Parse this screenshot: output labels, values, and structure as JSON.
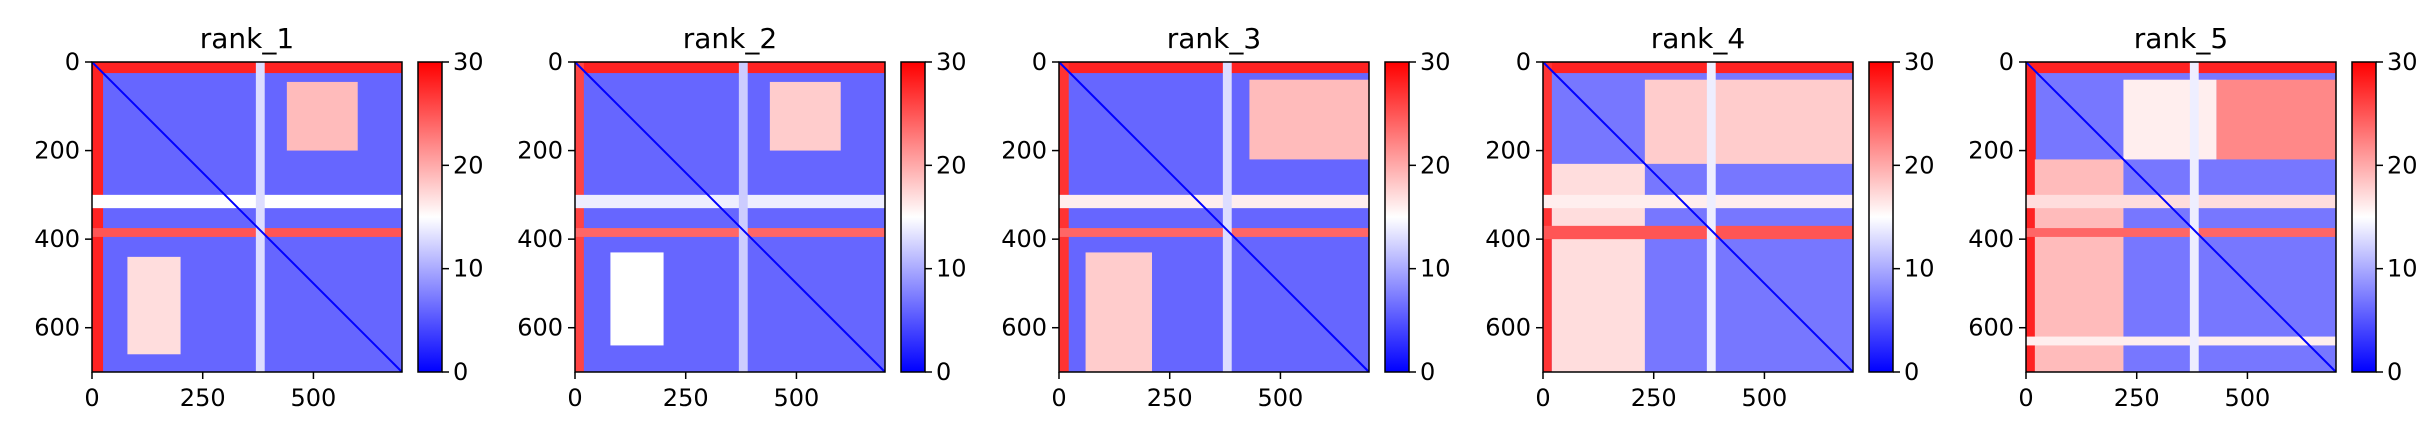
{
  "figure": {
    "panel_count": 5
  },
  "chart_data": [
    {
      "type": "heatmap",
      "title": "rank_1",
      "matrix_size": 700,
      "xticks": [
        0,
        250,
        500
      ],
      "yticks": [
        0,
        200,
        400,
        600
      ],
      "xlim": [
        0,
        700
      ],
      "ylim": [
        700,
        0
      ],
      "colorbar": {
        "min": 0,
        "max": 30,
        "ticks": [
          0,
          10,
          20,
          30
        ],
        "colormap": "bwr",
        "low_color": "#0000ff",
        "mid_color": "#ffffff",
        "high_color": "#ff0000"
      },
      "regions": [
        {
          "rows": [
            0,
            700
          ],
          "cols": [
            0,
            700
          ],
          "value": 6
        },
        {
          "rows": [
            0,
            25
          ],
          "cols": [
            0,
            700
          ],
          "value": 28
        },
        {
          "rows": [
            0,
            700
          ],
          "cols": [
            0,
            25
          ],
          "value": 28
        },
        {
          "rows": [
            45,
            200
          ],
          "cols": [
            440,
            600
          ],
          "value": 19
        },
        {
          "rows": [
            440,
            660
          ],
          "cols": [
            80,
            200
          ],
          "value": 17
        },
        {
          "rows": [
            300,
            330
          ],
          "cols": [
            0,
            700
          ],
          "value": 15
        },
        {
          "rows": [
            375,
            395
          ],
          "cols": [
            0,
            700
          ],
          "value": 25
        },
        {
          "rows": [
            0,
            700
          ],
          "cols": [
            370,
            390
          ],
          "value": 13
        }
      ]
    },
    {
      "type": "heatmap",
      "title": "rank_2",
      "matrix_size": 700,
      "xticks": [
        0,
        250,
        500
      ],
      "yticks": [
        0,
        200,
        400,
        600
      ],
      "xlim": [
        0,
        700
      ],
      "ylim": [
        700,
        0
      ],
      "colorbar": {
        "min": 0,
        "max": 30,
        "ticks": [
          0,
          10,
          20,
          30
        ],
        "colormap": "bwr",
        "low_color": "#0000ff",
        "mid_color": "#ffffff",
        "high_color": "#ff0000"
      },
      "regions": [
        {
          "rows": [
            0,
            700
          ],
          "cols": [
            0,
            700
          ],
          "value": 6
        },
        {
          "rows": [
            0,
            25
          ],
          "cols": [
            0,
            700
          ],
          "value": 28
        },
        {
          "rows": [
            0,
            700
          ],
          "cols": [
            0,
            20
          ],
          "value": 26
        },
        {
          "rows": [
            45,
            200
          ],
          "cols": [
            440,
            600
          ],
          "value": 18
        },
        {
          "rows": [
            430,
            640
          ],
          "cols": [
            80,
            200
          ],
          "value": 15
        },
        {
          "rows": [
            300,
            330
          ],
          "cols": [
            0,
            700
          ],
          "value": 14
        },
        {
          "rows": [
            375,
            395
          ],
          "cols": [
            0,
            700
          ],
          "value": 24
        },
        {
          "rows": [
            0,
            700
          ],
          "cols": [
            370,
            390
          ],
          "value": 12
        }
      ]
    },
    {
      "type": "heatmap",
      "title": "rank_3",
      "matrix_size": 700,
      "xticks": [
        0,
        250,
        500
      ],
      "yticks": [
        0,
        200,
        400,
        600
      ],
      "xlim": [
        0,
        700
      ],
      "ylim": [
        700,
        0
      ],
      "colorbar": {
        "min": 0,
        "max": 30,
        "ticks": [
          0,
          10,
          20,
          30
        ],
        "colormap": "bwr",
        "low_color": "#0000ff",
        "mid_color": "#ffffff",
        "high_color": "#ff0000"
      },
      "regions": [
        {
          "rows": [
            0,
            700
          ],
          "cols": [
            0,
            700
          ],
          "value": 6
        },
        {
          "rows": [
            0,
            25
          ],
          "cols": [
            0,
            700
          ],
          "value": 28
        },
        {
          "rows": [
            0,
            700
          ],
          "cols": [
            0,
            22
          ],
          "value": 27
        },
        {
          "rows": [
            40,
            220
          ],
          "cols": [
            430,
            700
          ],
          "value": 19
        },
        {
          "rows": [
            430,
            700
          ],
          "cols": [
            60,
            210
          ],
          "value": 18
        },
        {
          "rows": [
            300,
            330
          ],
          "cols": [
            0,
            700
          ],
          "value": 16
        },
        {
          "rows": [
            375,
            395
          ],
          "cols": [
            0,
            700
          ],
          "value": 24
        },
        {
          "rows": [
            0,
            700
          ],
          "cols": [
            370,
            390
          ],
          "value": 13
        }
      ]
    },
    {
      "type": "heatmap",
      "title": "rank_4",
      "matrix_size": 700,
      "xticks": [
        0,
        250,
        500
      ],
      "yticks": [
        0,
        200,
        400,
        600
      ],
      "xlim": [
        0,
        700
      ],
      "ylim": [
        700,
        0
      ],
      "colorbar": {
        "min": 0,
        "max": 30,
        "ticks": [
          0,
          10,
          20,
          30
        ],
        "colormap": "bwr",
        "low_color": "#0000ff",
        "mid_color": "#ffffff",
        "high_color": "#ff0000"
      },
      "regions": [
        {
          "rows": [
            0,
            700
          ],
          "cols": [
            0,
            700
          ],
          "value": 7
        },
        {
          "rows": [
            0,
            25
          ],
          "cols": [
            0,
            700
          ],
          "value": 28
        },
        {
          "rows": [
            0,
            700
          ],
          "cols": [
            0,
            20
          ],
          "value": 27
        },
        {
          "rows": [
            40,
            230
          ],
          "cols": [
            230,
            700
          ],
          "value": 18
        },
        {
          "rows": [
            230,
            700
          ],
          "cols": [
            20,
            230
          ],
          "value": 17
        },
        {
          "rows": [
            300,
            330
          ],
          "cols": [
            0,
            700
          ],
          "value": 16
        },
        {
          "rows": [
            370,
            400
          ],
          "cols": [
            0,
            700
          ],
          "value": 25
        },
        {
          "rows": [
            0,
            700
          ],
          "cols": [
            370,
            390
          ],
          "value": 14
        }
      ]
    },
    {
      "type": "heatmap",
      "title": "rank_5",
      "matrix_size": 700,
      "xticks": [
        0,
        250,
        500
      ],
      "yticks": [
        0,
        200,
        400,
        600
      ],
      "xlim": [
        0,
        700
      ],
      "ylim": [
        700,
        0
      ],
      "colorbar": {
        "min": 0,
        "max": 30,
        "ticks": [
          0,
          10,
          20,
          30
        ],
        "colormap": "bwr",
        "low_color": "#0000ff",
        "mid_color": "#ffffff",
        "high_color": "#ff0000"
      },
      "regions": [
        {
          "rows": [
            0,
            700
          ],
          "cols": [
            0,
            700
          ],
          "value": 7
        },
        {
          "rows": [
            0,
            25
          ],
          "cols": [
            0,
            700
          ],
          "value": 28
        },
        {
          "rows": [
            0,
            700
          ],
          "cols": [
            0,
            22
          ],
          "value": 28
        },
        {
          "rows": [
            40,
            220
          ],
          "cols": [
            430,
            700
          ],
          "value": 22
        },
        {
          "rows": [
            40,
            220
          ],
          "cols": [
            220,
            430
          ],
          "value": 16
        },
        {
          "rows": [
            220,
            700
          ],
          "cols": [
            20,
            220
          ],
          "value": 19
        },
        {
          "rows": [
            300,
            330
          ],
          "cols": [
            0,
            700
          ],
          "value": 17
        },
        {
          "rows": [
            375,
            395
          ],
          "cols": [
            0,
            700
          ],
          "value": 24
        },
        {
          "rows": [
            620,
            640
          ],
          "cols": [
            0,
            700
          ],
          "value": 16
        },
        {
          "rows": [
            0,
            700
          ],
          "cols": [
            370,
            390
          ],
          "value": 14
        }
      ]
    }
  ]
}
